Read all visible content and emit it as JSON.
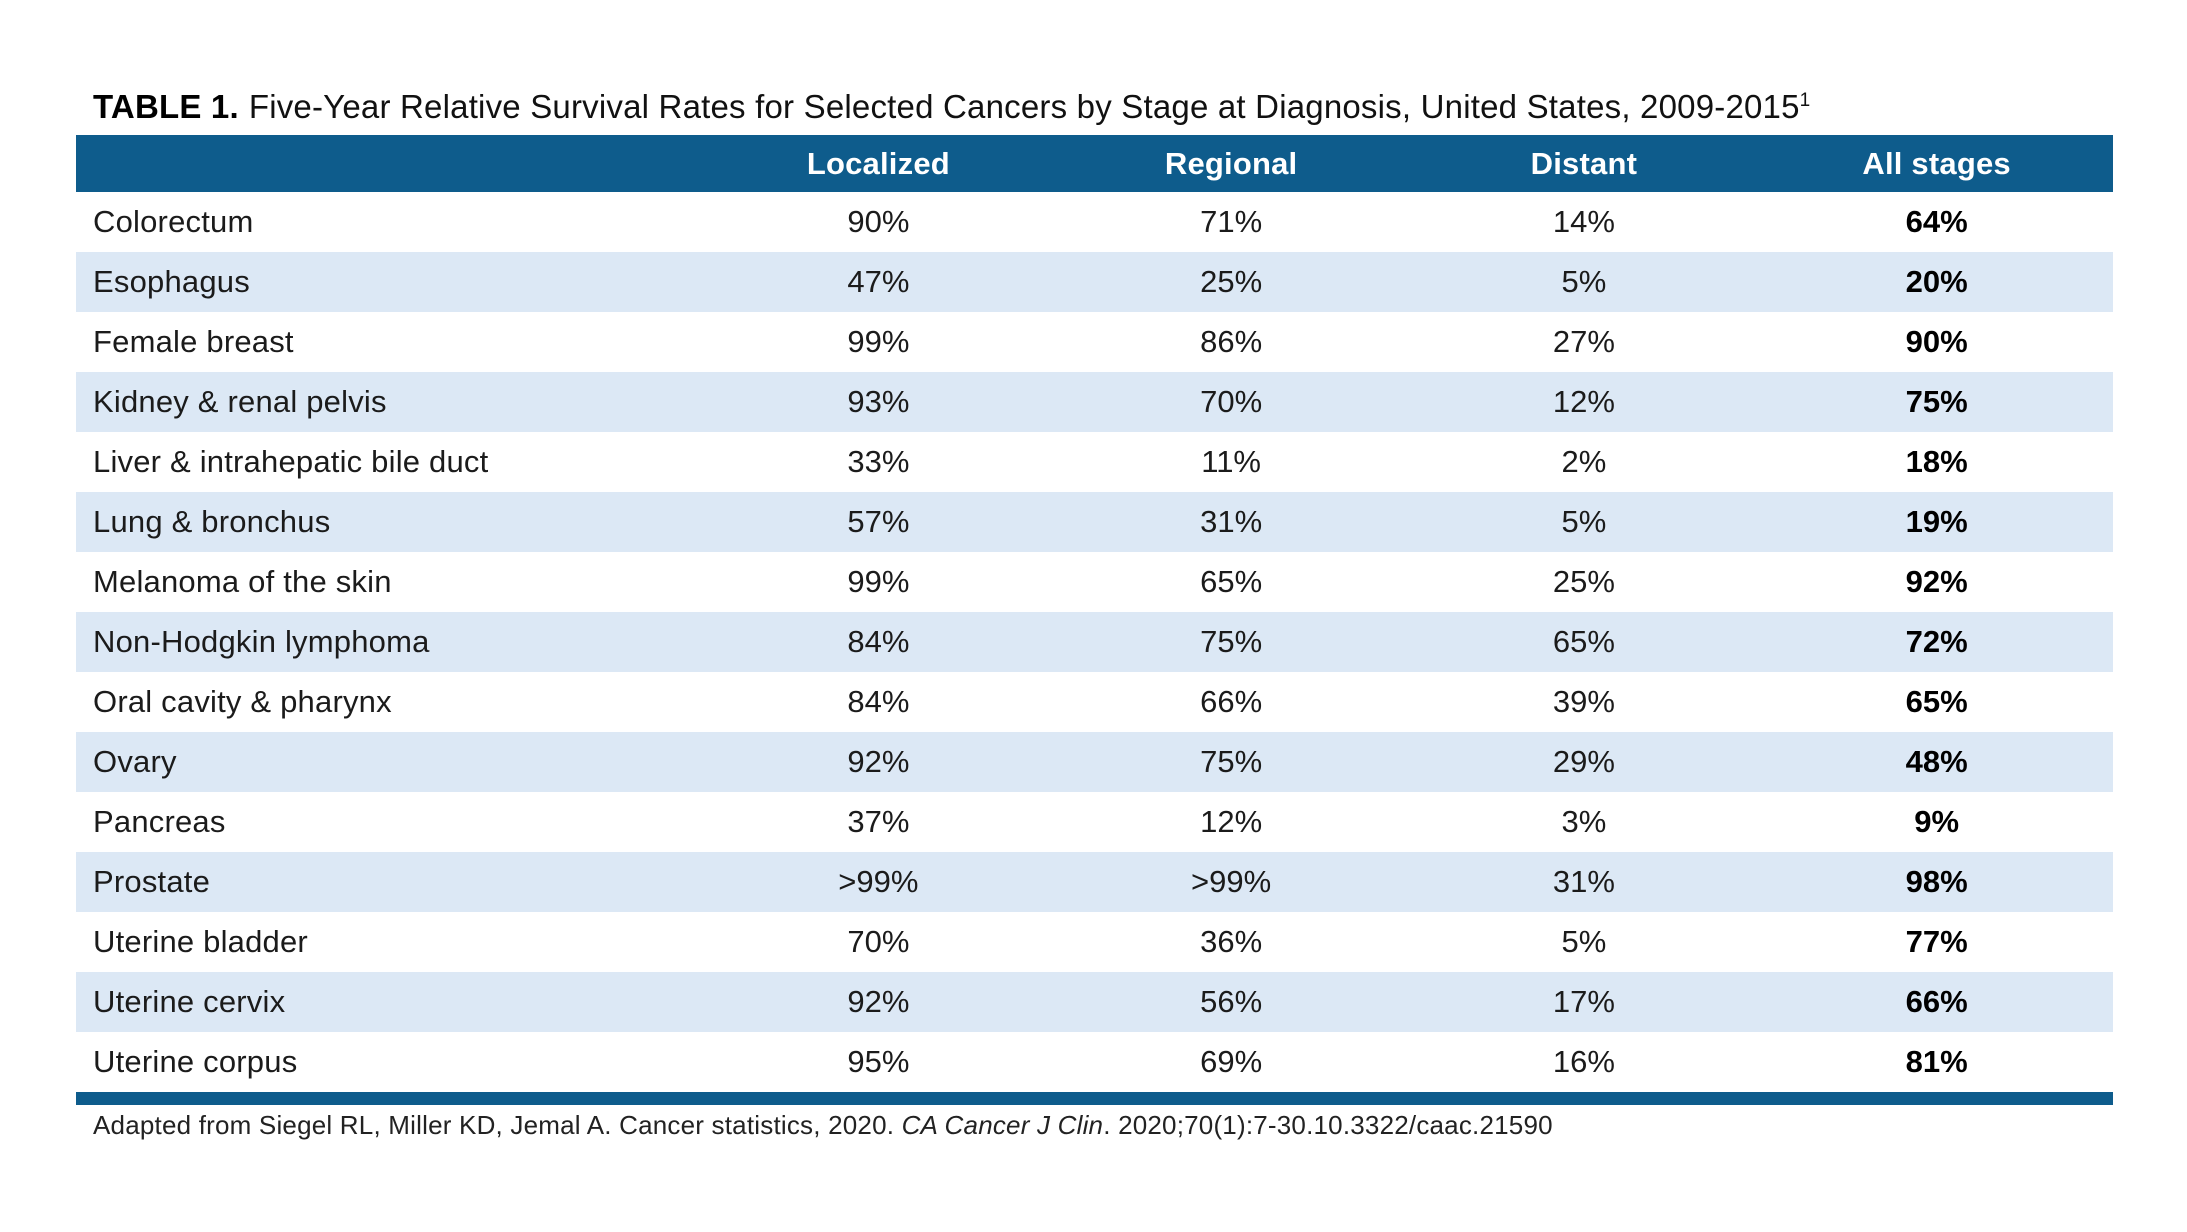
{
  "title": {
    "label": "TABLE 1.",
    "text": "Five-Year Relative Survival Rates for Selected Cancers by Stage at Diagnosis, United States, 2009-2015",
    "superscript": "1"
  },
  "table": {
    "columns": [
      "Localized",
      "Regional",
      "Distant",
      "All stages"
    ],
    "rows": [
      {
        "site": "Colorectum",
        "values": [
          "90%",
          "71%",
          "14%",
          "64%"
        ]
      },
      {
        "site": "Esophagus",
        "values": [
          "47%",
          "25%",
          "5%",
          "20%"
        ]
      },
      {
        "site": "Female breast",
        "values": [
          "99%",
          "86%",
          "27%",
          "90%"
        ]
      },
      {
        "site": "Kidney & renal pelvis",
        "values": [
          "93%",
          "70%",
          "12%",
          "75%"
        ]
      },
      {
        "site": "Liver & intrahepatic bile duct",
        "values": [
          "33%",
          "11%",
          "2%",
          "18%"
        ]
      },
      {
        "site": "Lung & bronchus",
        "values": [
          "57%",
          "31%",
          "5%",
          "19%"
        ]
      },
      {
        "site": "Melanoma of the skin",
        "values": [
          "99%",
          "65%",
          "25%",
          "92%"
        ]
      },
      {
        "site": "Non-Hodgkin lymphoma",
        "values": [
          "84%",
          "75%",
          "65%",
          "72%"
        ]
      },
      {
        "site": "Oral cavity & pharynx",
        "values": [
          "84%",
          "66%",
          "39%",
          "65%"
        ]
      },
      {
        "site": "Ovary",
        "values": [
          "92%",
          "75%",
          "29%",
          "48%"
        ]
      },
      {
        "site": "Pancreas",
        "values": [
          "37%",
          "12%",
          "3%",
          "9%"
        ]
      },
      {
        "site": "Prostate",
        "values": [
          ">99%",
          ">99%",
          "31%",
          "98%"
        ]
      },
      {
        "site": "Uterine bladder",
        "values": [
          "70%",
          "36%",
          "5%",
          "77%"
        ]
      },
      {
        "site": "Uterine cervix",
        "values": [
          "92%",
          "56%",
          "17%",
          "66%"
        ]
      },
      {
        "site": "Uterine corpus",
        "values": [
          "95%",
          "69%",
          "16%",
          "81%"
        ]
      }
    ]
  },
  "footnote": {
    "pre": "Adapted from Siegel RL, Miller KD, Jemal A. Cancer statistics, 2020. ",
    "italic": "CA Cancer J Clin",
    "post": ". 2020;70(1):7-30.10.3322/caac.21590"
  },
  "colors": {
    "header_blue": "#0e5c8c",
    "row_stripe": "#dce8f5",
    "text": "#1b1b1b"
  },
  "chart_data": {
    "type": "table",
    "title": "TABLE 1. Five-Year Relative Survival Rates for Selected Cancers by Stage at Diagnosis, United States, 2009-2015",
    "columns": [
      "Localized",
      "Regional",
      "Distant",
      "All stages"
    ],
    "rows": [
      [
        "Colorectum",
        "90%",
        "71%",
        "14%",
        "64%"
      ],
      [
        "Esophagus",
        "47%",
        "25%",
        "5%",
        "20%"
      ],
      [
        "Female breast",
        "99%",
        "86%",
        "27%",
        "90%"
      ],
      [
        "Kidney & renal pelvis",
        "93%",
        "70%",
        "12%",
        "75%"
      ],
      [
        "Liver & intrahepatic bile duct",
        "33%",
        "11%",
        "2%",
        "18%"
      ],
      [
        "Lung & bronchus",
        "57%",
        "31%",
        "5%",
        "19%"
      ],
      [
        "Melanoma of the skin",
        "99%",
        "65%",
        "25%",
        "92%"
      ],
      [
        "Non-Hodgkin lymphoma",
        "84%",
        "75%",
        "65%",
        "72%"
      ],
      [
        "Oral cavity & pharynx",
        "84%",
        "66%",
        "39%",
        "65%"
      ],
      [
        "Ovary",
        "92%",
        "75%",
        "29%",
        "48%"
      ],
      [
        "Pancreas",
        "37%",
        "12%",
        "3%",
        "9%"
      ],
      [
        "Prostate",
        ">99%",
        ">99%",
        "31%",
        "98%"
      ],
      [
        "Uterine bladder",
        "70%",
        "36%",
        "5%",
        "77%"
      ],
      [
        "Uterine cervix",
        "92%",
        "56%",
        "17%",
        "66%"
      ],
      [
        "Uterine corpus",
        "95%",
        "69%",
        "16%",
        "81%"
      ]
    ]
  }
}
